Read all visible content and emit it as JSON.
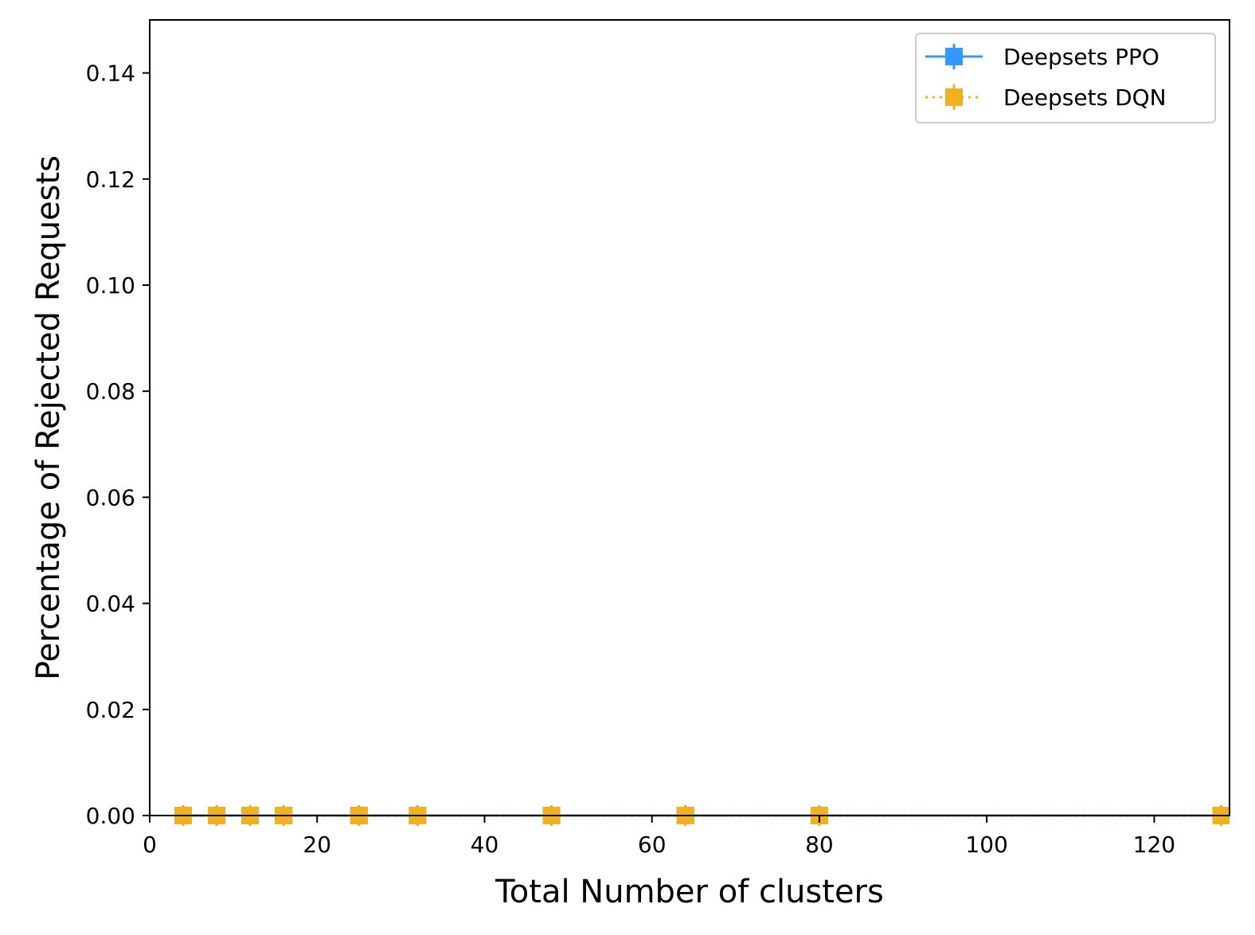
{
  "chart_data": {
    "type": "line",
    "xlabel": "Total Number of clusters",
    "ylabel": "Percentage of Rejected Requests",
    "xlim": [
      0,
      129
    ],
    "ylim": [
      0,
      0.15
    ],
    "xticks": [
      0,
      20,
      40,
      60,
      80,
      100,
      120
    ],
    "yticks": [
      0.0,
      0.02,
      0.04,
      0.06,
      0.08,
      0.1,
      0.12,
      0.14
    ],
    "xtick_labels": [
      "0",
      "20",
      "40",
      "60",
      "80",
      "100",
      "120"
    ],
    "ytick_labels": [
      "0.00",
      "0.02",
      "0.04",
      "0.06",
      "0.08",
      "0.10",
      "0.12",
      "0.14"
    ],
    "grid": false,
    "legend_position": "top-right",
    "x": [
      4,
      8,
      12,
      16,
      25,
      32,
      48,
      64,
      80,
      128
    ],
    "series": [
      {
        "name": "Deepsets PPO",
        "color": "#3399ff",
        "linestyle": "solid",
        "marker": "square",
        "values": [
          0,
          0,
          0,
          0,
          0,
          0,
          0,
          0,
          0,
          0
        ]
      },
      {
        "name": "Deepsets DQN",
        "color": "#f0b020",
        "linestyle": "dotted",
        "marker": "square",
        "values": [
          0,
          0,
          0,
          0,
          0,
          0,
          0,
          0,
          0,
          0
        ]
      }
    ]
  }
}
